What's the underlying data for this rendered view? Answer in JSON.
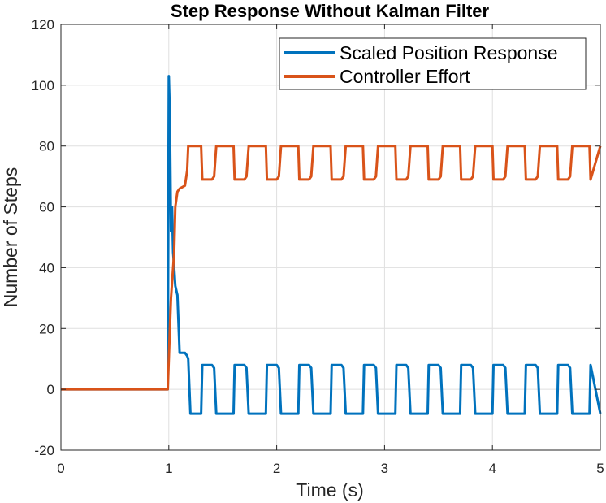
{
  "chart_data": {
    "type": "line",
    "title": "Step Response Without Kalman Filter",
    "xlabel": "Time (s)",
    "ylabel": "Number of Steps",
    "xlim": [
      0,
      5
    ],
    "ylim": [
      -20,
      120
    ],
    "xticks": [
      0,
      1,
      2,
      3,
      4,
      5
    ],
    "yticks": [
      -20,
      0,
      20,
      40,
      60,
      80,
      100,
      120
    ],
    "grid": true,
    "legend_position": "top-right",
    "series": [
      {
        "name": "Scaled Position Response",
        "color": "#0072BD",
        "x": [
          0,
          0.99,
          1.0,
          1.01,
          1.02,
          1.03,
          1.04,
          1.05,
          1.06,
          1.08,
          1.1,
          1.12,
          1.15,
          1.17,
          1.18,
          1.2,
          1.3,
          1.31,
          1.4,
          1.42,
          1.44,
          1.5,
          1.6,
          1.61,
          1.7,
          1.72,
          1.74,
          1.8,
          1.9,
          1.91,
          2.0,
          2.02,
          2.04,
          2.1,
          2.2,
          2.21,
          2.3,
          2.32,
          2.34,
          2.4,
          2.5,
          2.51,
          2.6,
          2.62,
          2.64,
          2.7,
          2.8,
          2.81,
          2.9,
          2.92,
          2.94,
          3.0,
          3.1,
          3.11,
          3.2,
          3.22,
          3.24,
          3.3,
          3.4,
          3.41,
          3.5,
          3.52,
          3.54,
          3.6,
          3.7,
          3.71,
          3.8,
          3.82,
          3.84,
          3.9,
          4.0,
          4.01,
          4.1,
          4.12,
          4.14,
          4.2,
          4.3,
          4.31,
          4.4,
          4.42,
          4.44,
          4.5,
          4.6,
          4.61,
          4.7,
          4.72,
          4.74,
          4.8,
          4.9,
          4.91,
          5.0
        ],
        "values": [
          0,
          0,
          103,
          90,
          52,
          60,
          45,
          40,
          34,
          31,
          12,
          12,
          12,
          11,
          10,
          -8,
          -8,
          8,
          8,
          7,
          -8,
          -8,
          -8,
          8,
          8,
          7,
          -8,
          -8,
          -8,
          8,
          8,
          7,
          -8,
          -8,
          -8,
          8,
          8,
          7,
          -8,
          -8,
          -8,
          8,
          8,
          7,
          -8,
          -8,
          -8,
          8,
          8,
          7,
          -8,
          -8,
          -8,
          8,
          8,
          7,
          -8,
          -8,
          -8,
          8,
          8,
          7,
          -8,
          -8,
          -8,
          8,
          8,
          7,
          -8,
          -8,
          -8,
          8,
          8,
          7,
          -8,
          -8,
          -8,
          8,
          8,
          7,
          -8,
          -8,
          -8,
          8,
          8,
          7,
          -8,
          -8,
          -8,
          8,
          -8
        ]
      },
      {
        "name": "Controller Effort",
        "color": "#D95319",
        "x": [
          0,
          0.99,
          1.0,
          1.01,
          1.02,
          1.03,
          1.04,
          1.05,
          1.06,
          1.08,
          1.1,
          1.15,
          1.17,
          1.18,
          1.3,
          1.31,
          1.4,
          1.42,
          1.44,
          1.5,
          1.6,
          1.61,
          1.7,
          1.72,
          1.74,
          1.8,
          1.9,
          1.91,
          2.0,
          2.02,
          2.04,
          2.1,
          2.2,
          2.21,
          2.3,
          2.32,
          2.34,
          2.4,
          2.5,
          2.51,
          2.6,
          2.62,
          2.64,
          2.7,
          2.8,
          2.81,
          2.9,
          2.92,
          2.94,
          3.0,
          3.1,
          3.11,
          3.2,
          3.22,
          3.24,
          3.3,
          3.4,
          3.41,
          3.5,
          3.52,
          3.54,
          3.6,
          3.7,
          3.71,
          3.8,
          3.82,
          3.84,
          3.9,
          4.0,
          4.01,
          4.1,
          4.12,
          4.14,
          4.2,
          4.3,
          4.31,
          4.4,
          4.42,
          4.44,
          4.5,
          4.6,
          4.61,
          4.7,
          4.72,
          4.74,
          4.8,
          4.9,
          4.91,
          5.0
        ],
        "values": [
          0,
          0,
          10,
          20,
          30,
          35,
          40,
          45,
          60,
          65,
          66,
          67,
          72,
          80,
          80,
          69,
          69,
          70,
          80,
          80,
          80,
          69,
          69,
          70,
          80,
          80,
          80,
          69,
          69,
          70,
          80,
          80,
          80,
          69,
          69,
          70,
          80,
          80,
          80,
          69,
          69,
          70,
          80,
          80,
          80,
          69,
          69,
          70,
          80,
          80,
          80,
          69,
          69,
          70,
          80,
          80,
          80,
          69,
          69,
          70,
          80,
          80,
          80,
          69,
          69,
          70,
          80,
          80,
          80,
          69,
          69,
          70,
          80,
          80,
          80,
          69,
          69,
          70,
          80,
          80,
          80,
          69,
          69,
          70,
          80,
          80,
          80,
          69,
          80
        ]
      }
    ]
  }
}
